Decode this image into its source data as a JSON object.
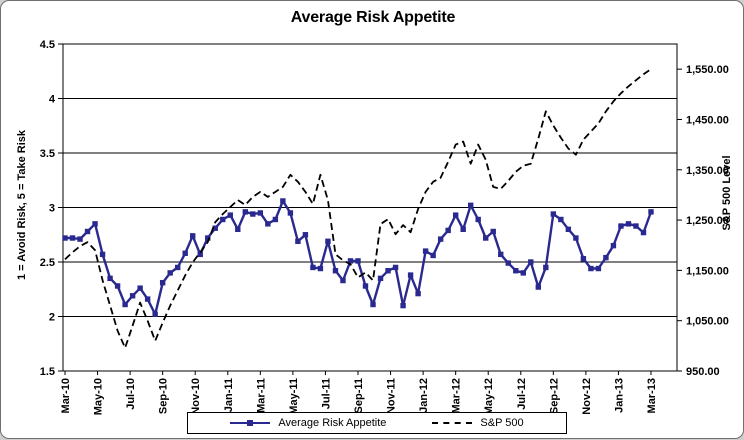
{
  "chart_data": {
    "type": "line",
    "title": "Average Risk Appetite",
    "left_axis_title": "1 = Avoid Risk, 5 = Take Risk",
    "right_axis_title": "S&P 500 Level",
    "x_tick_labels": [
      "Mar-10",
      "May-10",
      "Jul-10",
      "Sep-10",
      "Nov-10",
      "Jan-11",
      "Mar-11",
      "May-11",
      "Jul-11",
      "Sep-11",
      "Nov-11",
      "Jan-12",
      "Mar-12",
      "May-12",
      "Jul-12",
      "Sep-12",
      "Nov-12",
      "Jan-13",
      "Mar-13"
    ],
    "left_tick_labels": [
      "4.5",
      "4",
      "3.5",
      "3",
      "2.5",
      "2",
      "1.5"
    ],
    "left_tick_values": [
      4.5,
      4.0,
      3.5,
      3.0,
      2.5,
      2.0,
      1.5
    ],
    "right_tick_labels": [
      "1,550.00",
      "1,450.00",
      "1,350.00",
      "1,250.00",
      "1,150.00",
      "1,050.00",
      "950.00"
    ],
    "right_tick_values": [
      1550,
      1450,
      1350,
      1250,
      1150,
      1050,
      950
    ],
    "left_ylim": [
      1.5,
      4.5
    ],
    "right_ylim": [
      950,
      1600
    ],
    "grid": true,
    "legend_position": "bottom",
    "x_range_note": "biweekly samples Mar-2010 through Mar-2013",
    "series": [
      {
        "name": "Average Risk Appetite",
        "axis": "left",
        "color": "#29298f",
        "line": "solid",
        "marker": "square",
        "values": [
          2.72,
          2.72,
          2.71,
          2.78,
          2.85,
          2.57,
          2.35,
          2.28,
          2.11,
          2.19,
          2.26,
          2.16,
          2.02,
          2.31,
          2.4,
          2.45,
          2.58,
          2.74,
          2.57,
          2.72,
          2.81,
          2.89,
          2.93,
          2.8,
          2.96,
          2.94,
          2.95,
          2.85,
          2.89,
          3.06,
          2.95,
          2.69,
          2.75,
          2.45,
          2.44,
          2.69,
          2.42,
          2.33,
          2.51,
          2.51,
          2.28,
          2.11,
          2.35,
          2.42,
          2.45,
          2.1,
          2.38,
          2.21,
          2.6,
          2.56,
          2.71,
          2.79,
          2.93,
          2.8,
          3.02,
          2.89,
          2.72,
          2.78,
          2.57,
          2.49,
          2.42,
          2.4,
          2.5,
          2.27,
          2.45,
          2.94,
          2.89,
          2.8,
          2.72,
          2.53,
          2.44,
          2.44,
          2.54,
          2.65,
          2.83,
          2.85,
          2.83,
          2.77,
          2.96
        ]
      },
      {
        "name": "S&P 500",
        "axis": "right",
        "color": "#000000",
        "line": "dashed",
        "marker": "none",
        "values": [
          1172,
          1186,
          1198,
          1206,
          1190,
          1130,
          1080,
          1030,
          996,
          1040,
          1086,
          1050,
          1010,
          1046,
          1080,
          1110,
          1140,
          1166,
          1186,
          1206,
          1246,
          1262,
          1276,
          1290,
          1280,
          1296,
          1306,
          1296,
          1306,
          1316,
          1340,
          1326,
          1306,
          1282,
          1340,
          1290,
          1182,
          1170,
          1162,
          1136,
          1146,
          1130,
          1242,
          1252,
          1222,
          1240,
          1226,
          1272,
          1306,
          1326,
          1334,
          1366,
          1400,
          1406,
          1362,
          1400,
          1370,
          1316,
          1312,
          1328,
          1346,
          1358,
          1362,
          1412,
          1466,
          1438,
          1414,
          1392,
          1380,
          1410,
          1426,
          1442,
          1466,
          1486,
          1502,
          1516,
          1528,
          1540,
          1550
        ]
      }
    ]
  }
}
